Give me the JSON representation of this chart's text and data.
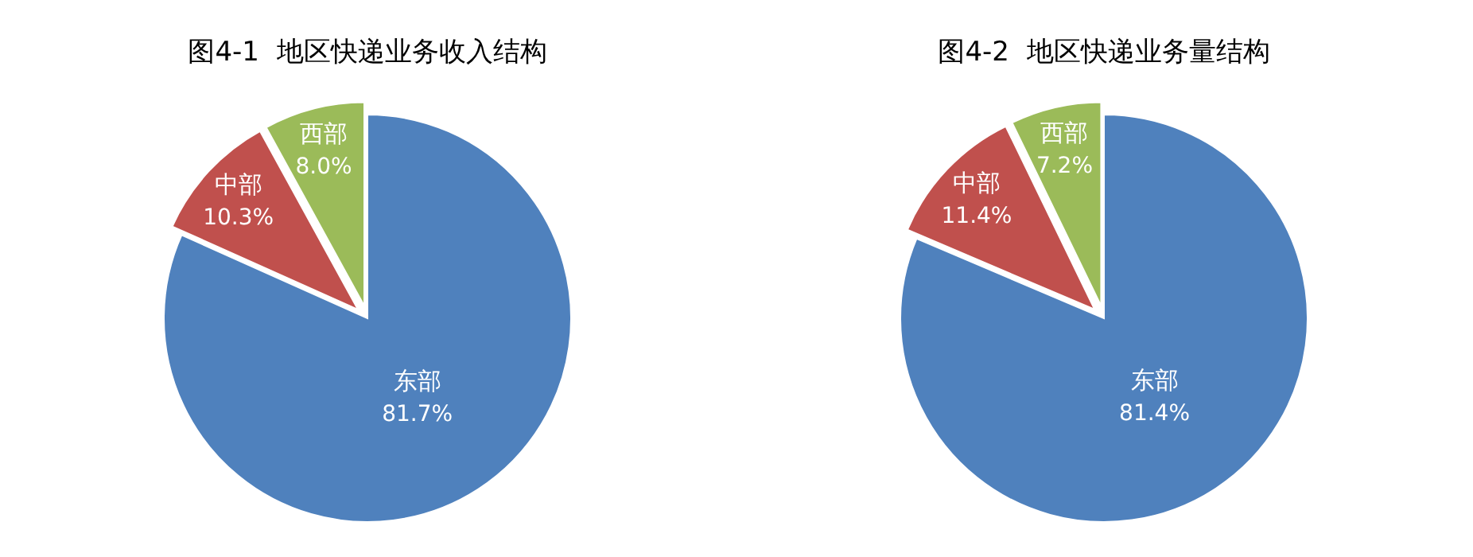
{
  "chart_data": [
    {
      "type": "pie",
      "title": "图4-1  地区快递业务收入结构",
      "categories": [
        "东部",
        "中部",
        "西部"
      ],
      "values": [
        81.7,
        10.3,
        8.0
      ],
      "colors": [
        "#4f81bd",
        "#c0504d",
        "#9bbb59"
      ],
      "value_labels": [
        "81.7%",
        "10.3%",
        "8.0%"
      ]
    },
    {
      "type": "pie",
      "title": "图4-2  地区快递业务量结构",
      "categories": [
        "东部",
        "中部",
        "西部"
      ],
      "values": [
        81.4,
        11.4,
        7.2
      ],
      "colors": [
        "#4f81bd",
        "#c0504d",
        "#9bbb59"
      ],
      "value_labels": [
        "81.4%",
        "11.4%",
        "7.2%"
      ]
    }
  ]
}
